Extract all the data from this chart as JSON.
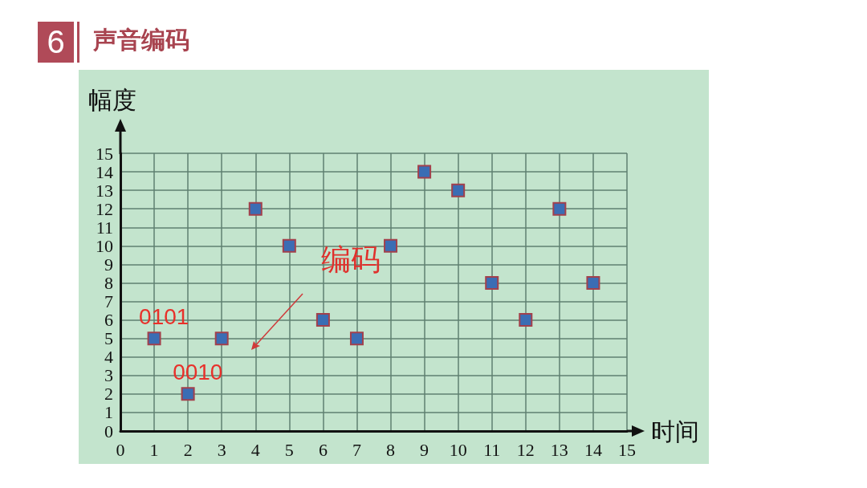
{
  "chart_data": {
    "type": "scatter",
    "title": "声音编码",
    "xlabel": "时间",
    "ylabel": "幅度",
    "x": [
      1,
      2,
      3,
      4,
      5,
      6,
      7,
      8,
      9,
      10,
      11,
      12,
      13,
      14
    ],
    "values": [
      5,
      2,
      5,
      12,
      10,
      6,
      5,
      10,
      14,
      13,
      8,
      6,
      12,
      8
    ],
    "color": "#3b6db4",
    "marker": "square",
    "xlim": [
      0,
      15
    ],
    "ylim": [
      0,
      15
    ],
    "xticks": [
      0,
      1,
      2,
      3,
      4,
      5,
      6,
      7,
      8,
      9,
      10,
      11,
      12,
      13,
      14,
      15
    ],
    "yticks": [
      0,
      1,
      2,
      3,
      4,
      5,
      6,
      7,
      8,
      9,
      10,
      11,
      12,
      13,
      14,
      15
    ],
    "grid": true,
    "annotations": [
      "6",
      {
        "text": "0101",
        "x": 1,
        "y": 5
      },
      {
        "text": "0010",
        "x": 2,
        "y": 2
      },
      "编码"
    ]
  }
}
